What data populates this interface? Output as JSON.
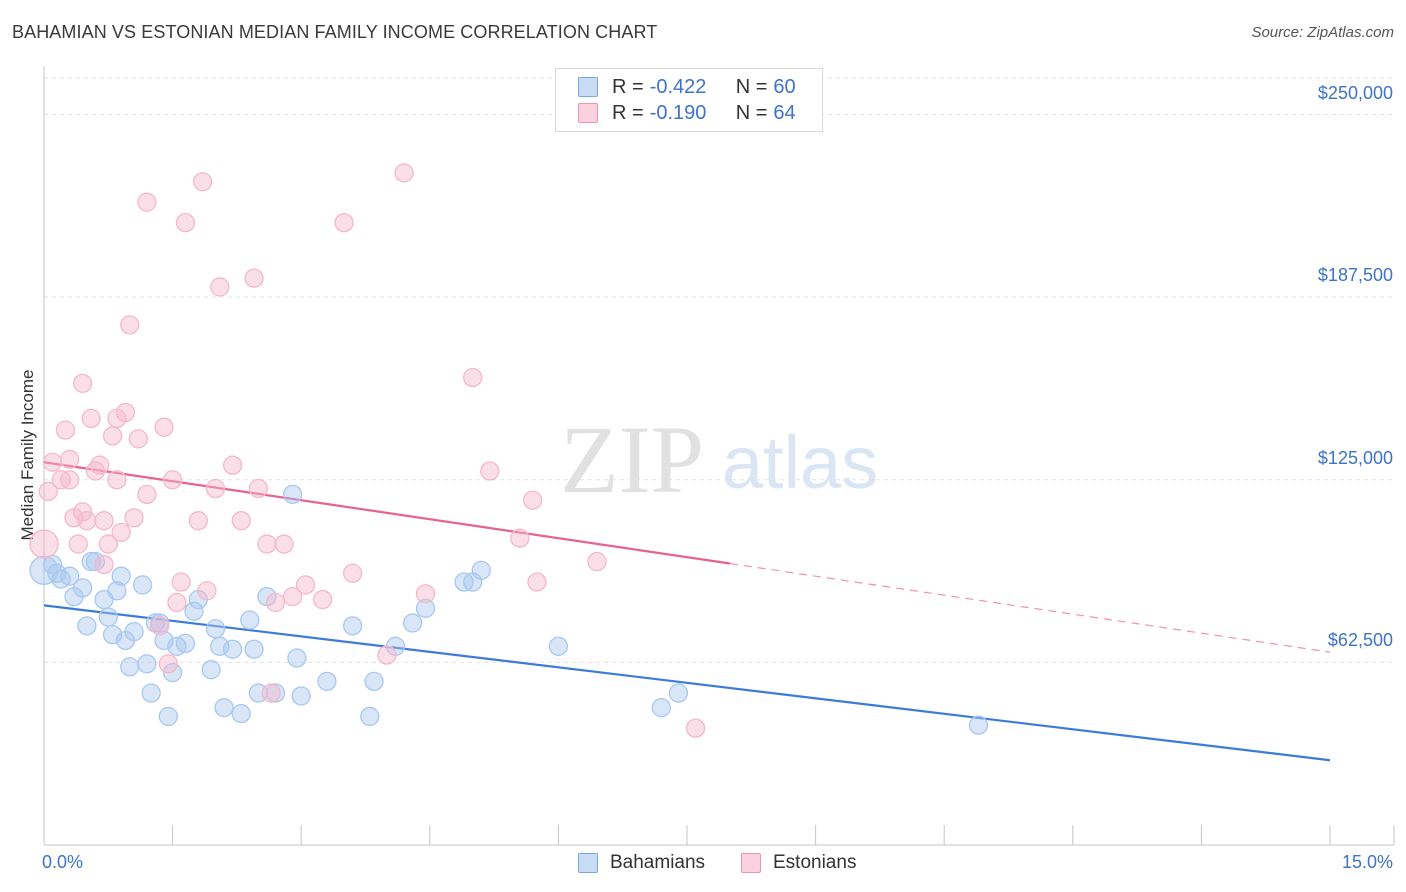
{
  "header": {
    "title": "BAHAMIAN VS ESTONIAN MEDIAN FAMILY INCOME CORRELATION CHART",
    "source": "Source: ZipAtlas.com"
  },
  "watermark": {
    "zip": "ZIP",
    "atlas": "atlas"
  },
  "legend_top": {
    "rows": [
      {
        "r_key": "R =",
        "r_value": "-0.422",
        "n_key": "N =",
        "n_value": "60",
        "color": "#a9c8f0"
      },
      {
        "r_key": "R =",
        "r_value": "-0.190",
        "n_key": "N =",
        "n_value": "64",
        "color": "#f5b8cb"
      }
    ]
  },
  "legend_bottom": {
    "items": [
      {
        "label": "Bahamians",
        "color": "#a9c8f0"
      },
      {
        "label": "Estonians",
        "color": "#f5b8cb"
      }
    ]
  },
  "chart_data": {
    "type": "scatter",
    "title": "BAHAMIAN VS ESTONIAN MEDIAN FAMILY INCOME CORRELATION CHART",
    "xlabel": "",
    "ylabel": "Median Family Income",
    "xlim": [
      0,
      15
    ],
    "ylim": [
      0,
      262500
    ],
    "x_tick_labels": [
      "0.0%",
      "15.0%"
    ],
    "y_ticks": [
      62500,
      125000,
      187500,
      250000
    ],
    "y_tick_labels": [
      "$62,500",
      "$125,000",
      "$187,500",
      "$250,000"
    ],
    "grid": true,
    "legend_position": "top-center",
    "series": [
      {
        "name": "Bahamians",
        "color": "#3d7bd9",
        "fill": "#a9c8f0",
        "r": -0.422,
        "n": 60,
        "trend": {
          "x": [
            0,
            15
          ],
          "y": [
            82000,
            29000
          ],
          "dashed_from": null
        },
        "points": [
          [
            0.0,
            94000
          ],
          [
            0.1,
            96000
          ],
          [
            0.15,
            93000
          ],
          [
            0.2,
            91000
          ],
          [
            0.3,
            92000
          ],
          [
            0.35,
            85000
          ],
          [
            0.45,
            88000
          ],
          [
            0.5,
            75000
          ],
          [
            0.55,
            97000
          ],
          [
            0.6,
            97000
          ],
          [
            0.7,
            84000
          ],
          [
            0.75,
            78000
          ],
          [
            0.8,
            72000
          ],
          [
            0.85,
            87000
          ],
          [
            0.9,
            92000
          ],
          [
            0.95,
            70000
          ],
          [
            1.0,
            61000
          ],
          [
            1.05,
            73000
          ],
          [
            1.15,
            89000
          ],
          [
            1.2,
            62000
          ],
          [
            1.25,
            52000
          ],
          [
            1.3,
            76000
          ],
          [
            1.35,
            76000
          ],
          [
            1.4,
            70000
          ],
          [
            1.45,
            44000
          ],
          [
            1.5,
            59000
          ],
          [
            1.55,
            68000
          ],
          [
            1.65,
            69000
          ],
          [
            1.75,
            80000
          ],
          [
            1.8,
            84000
          ],
          [
            1.95,
            60000
          ],
          [
            2.0,
            74000
          ],
          [
            2.05,
            68000
          ],
          [
            2.1,
            47000
          ],
          [
            2.2,
            67000
          ],
          [
            2.3,
            45000
          ],
          [
            2.4,
            77000
          ],
          [
            2.45,
            67000
          ],
          [
            2.5,
            52000
          ],
          [
            2.6,
            85000
          ],
          [
            2.7,
            52000
          ],
          [
            2.9,
            120000
          ],
          [
            2.95,
            64000
          ],
          [
            3.0,
            51000
          ],
          [
            3.3,
            56000
          ],
          [
            3.6,
            75000
          ],
          [
            3.8,
            44000
          ],
          [
            3.85,
            56000
          ],
          [
            4.1,
            68000
          ],
          [
            4.3,
            76000
          ],
          [
            4.45,
            81000
          ],
          [
            4.9,
            90000
          ],
          [
            5.0,
            90000
          ],
          [
            5.1,
            94000
          ],
          [
            6.0,
            68000
          ],
          [
            7.2,
            47000
          ],
          [
            7.4,
            52000
          ],
          [
            10.9,
            41000
          ]
        ]
      },
      {
        "name": "Estonians",
        "color": "#e8628f",
        "fill": "#f5b8cb",
        "r": -0.19,
        "n": 64,
        "trend": {
          "x": [
            0,
            15
          ],
          "y": [
            131000,
            66000
          ],
          "dashed_from": 8
        },
        "points": [
          [
            0.0,
            103000
          ],
          [
            0.05,
            121000
          ],
          [
            0.1,
            131000
          ],
          [
            0.2,
            125000
          ],
          [
            0.25,
            142000
          ],
          [
            0.3,
            132000
          ],
          [
            0.3,
            125000
          ],
          [
            0.35,
            112000
          ],
          [
            0.4,
            103000
          ],
          [
            0.45,
            114000
          ],
          [
            0.45,
            158000
          ],
          [
            0.5,
            111000
          ],
          [
            0.55,
            146000
          ],
          [
            0.6,
            128000
          ],
          [
            0.65,
            130000
          ],
          [
            0.7,
            96000
          ],
          [
            0.7,
            111000
          ],
          [
            0.75,
            103000
          ],
          [
            0.8,
            140000
          ],
          [
            0.85,
            125000
          ],
          [
            0.85,
            146000
          ],
          [
            0.9,
            107000
          ],
          [
            0.95,
            148000
          ],
          [
            1.0,
            178000
          ],
          [
            1.05,
            112000
          ],
          [
            1.1,
            139000
          ],
          [
            1.2,
            120000
          ],
          [
            1.2,
            220000
          ],
          [
            1.35,
            75000
          ],
          [
            1.4,
            143000
          ],
          [
            1.45,
            62000
          ],
          [
            1.5,
            125000
          ],
          [
            1.55,
            83000
          ],
          [
            1.6,
            90000
          ],
          [
            1.65,
            213000
          ],
          [
            1.8,
            111000
          ],
          [
            1.85,
            227000
          ],
          [
            1.9,
            87000
          ],
          [
            2.0,
            122000
          ],
          [
            2.05,
            191000
          ],
          [
            2.2,
            130000
          ],
          [
            2.3,
            111000
          ],
          [
            2.45,
            194000
          ],
          [
            2.5,
            122000
          ],
          [
            2.6,
            103000
          ],
          [
            2.65,
            52000
          ],
          [
            2.7,
            83000
          ],
          [
            2.8,
            103000
          ],
          [
            2.9,
            85000
          ],
          [
            3.05,
            89000
          ],
          [
            3.25,
            84000
          ],
          [
            3.5,
            213000
          ],
          [
            3.6,
            93000
          ],
          [
            4.0,
            65000
          ],
          [
            4.2,
            230000
          ],
          [
            4.45,
            86000
          ],
          [
            5.0,
            160000
          ],
          [
            5.2,
            128000
          ],
          [
            5.55,
            105000
          ],
          [
            5.7,
            118000
          ],
          [
            5.75,
            90000
          ],
          [
            6.45,
            97000
          ],
          [
            7.6,
            40000
          ]
        ]
      }
    ]
  }
}
